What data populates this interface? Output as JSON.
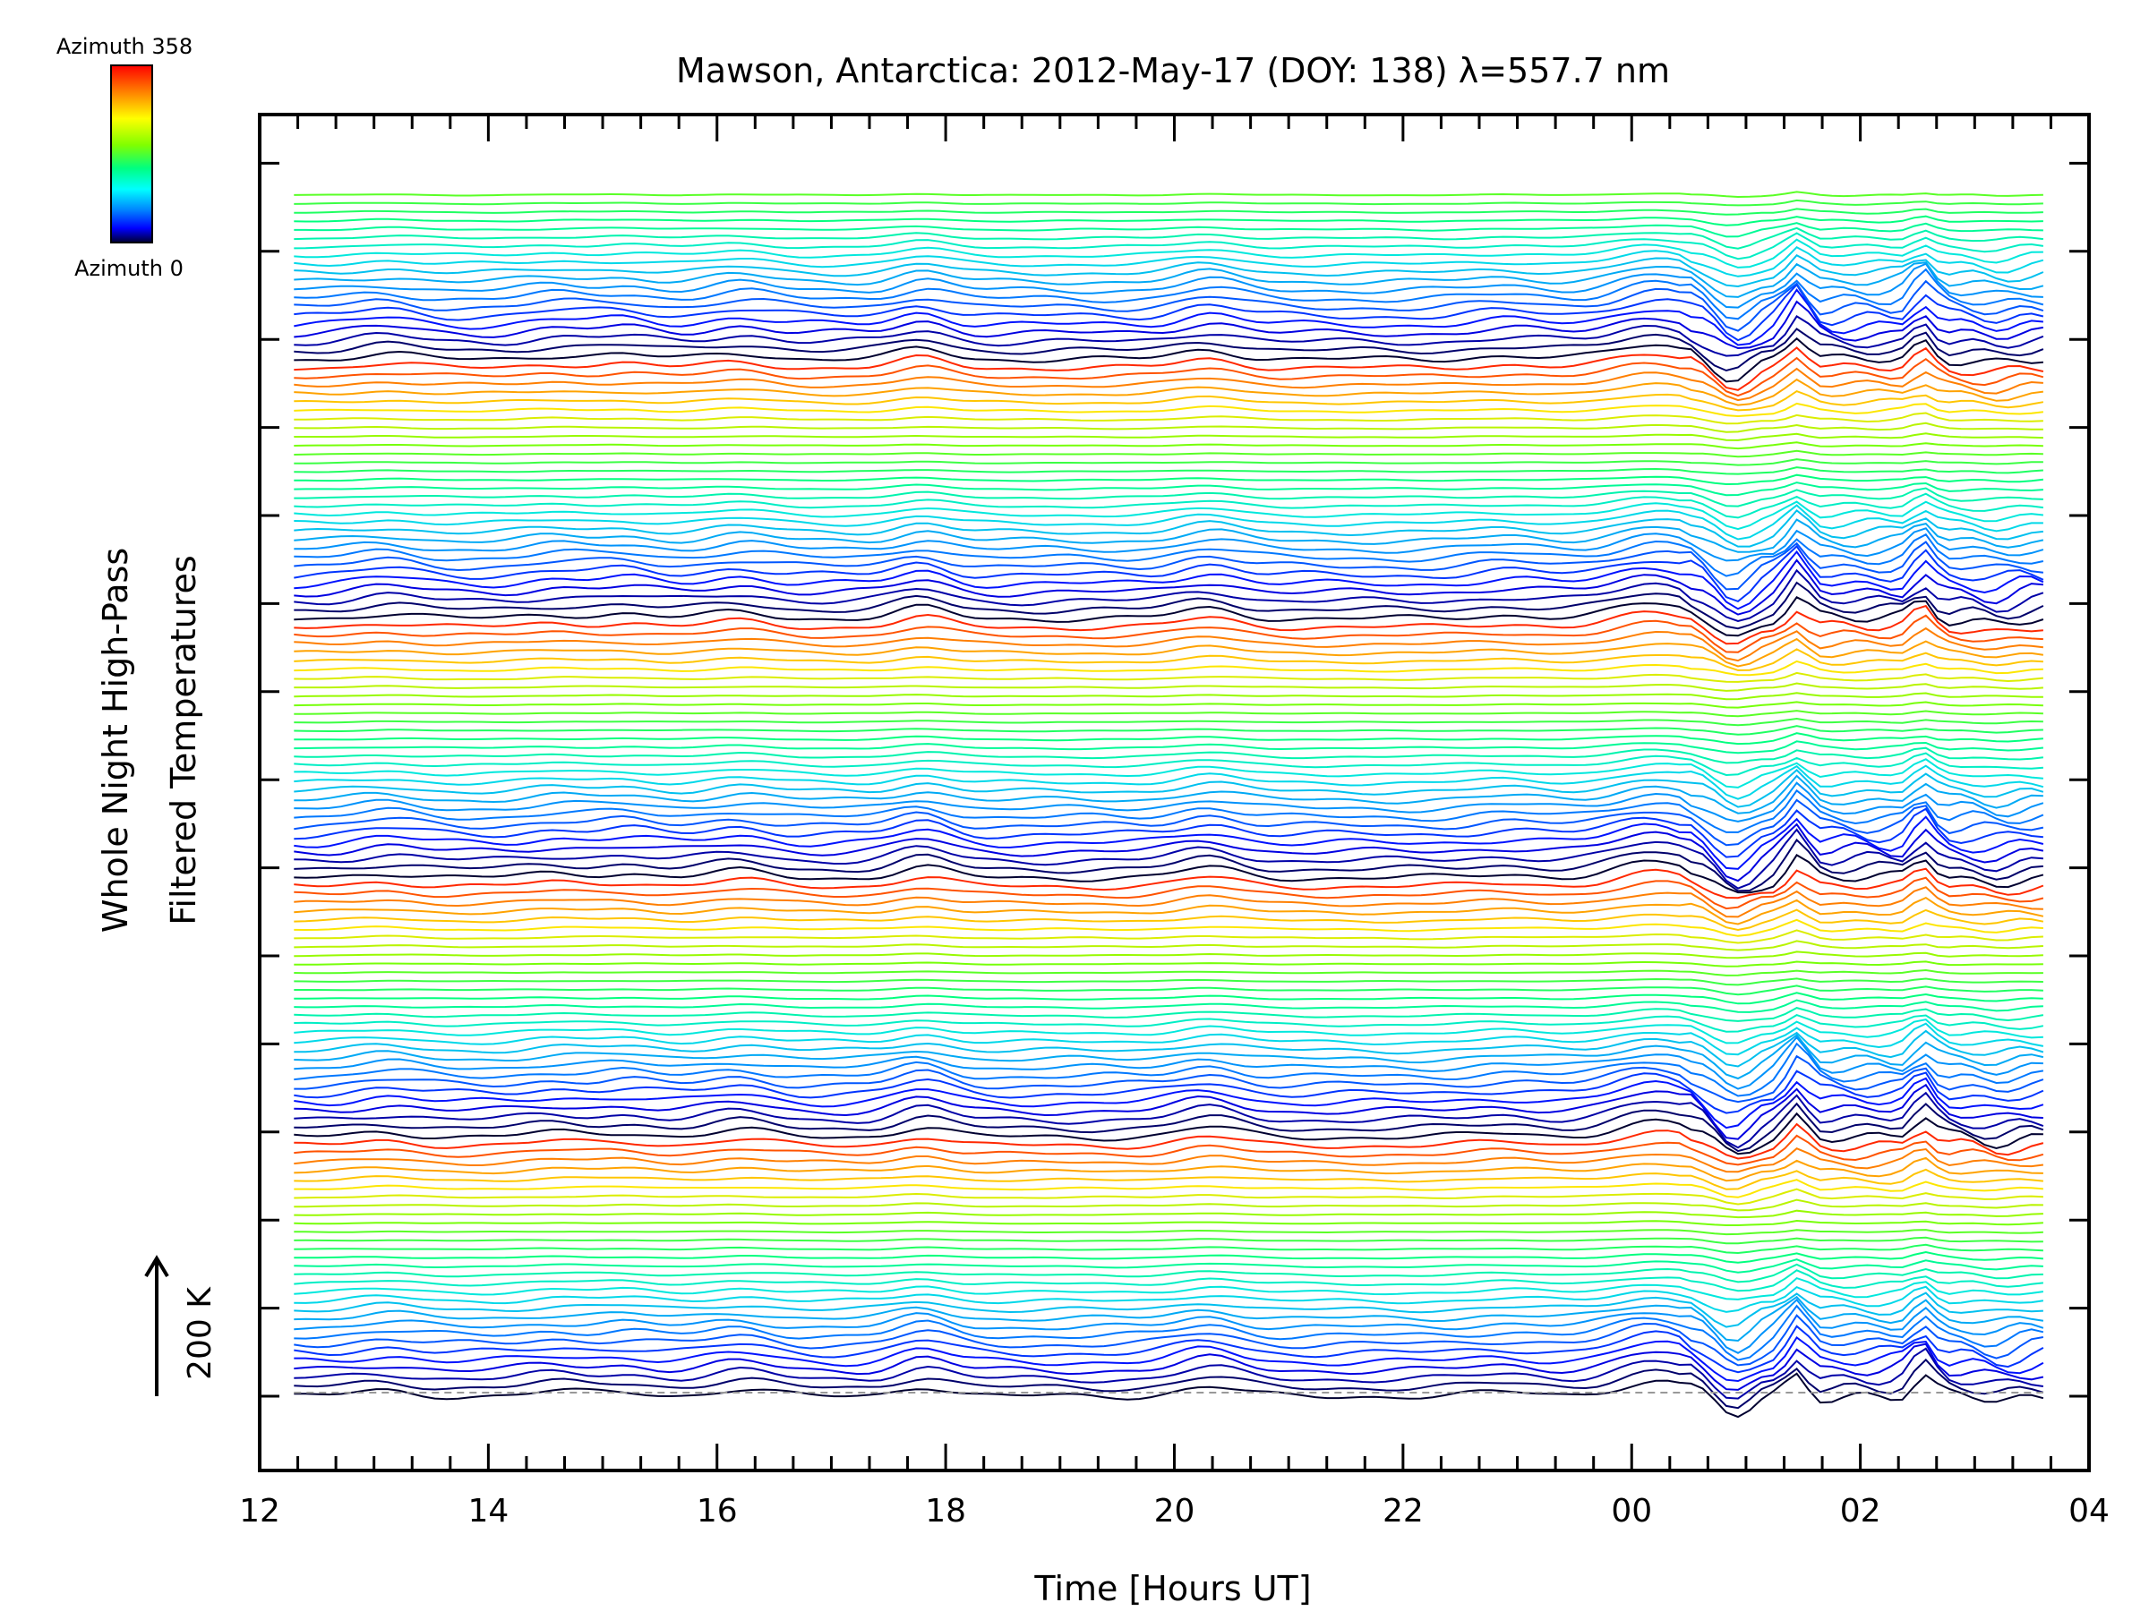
{
  "chart_data": {
    "type": "line",
    "title": "Mawson, Antarctica: 2012-May-17 (DOY: 138) λ=557.7 nm",
    "xlabel": "Time [Hours UT]",
    "ylabel_line1": "Whole Night High-Pass",
    "ylabel_line2": "Filtered Temperatures",
    "x_ticks": [
      "12",
      "14",
      "16",
      "18",
      "20",
      "22",
      "00",
      "02",
      "04"
    ],
    "xlim": [
      12,
      28
    ],
    "x_start_hour": 12.3,
    "x_end_hour": 27.6,
    "scale_bar_label": "200 K",
    "colorbar": {
      "top_label": "Azimuth 358",
      "bottom_label": "Azimuth 0",
      "colors": [
        "#ff0000",
        "#ff8000",
        "#ffff00",
        "#80ff00",
        "#00ff80",
        "#00ffff",
        "#0080ff",
        "#0000ff",
        "#000030"
      ]
    },
    "line_count": 140,
    "azimuth_cycle": 30,
    "baseline": "dashed-gray"
  }
}
